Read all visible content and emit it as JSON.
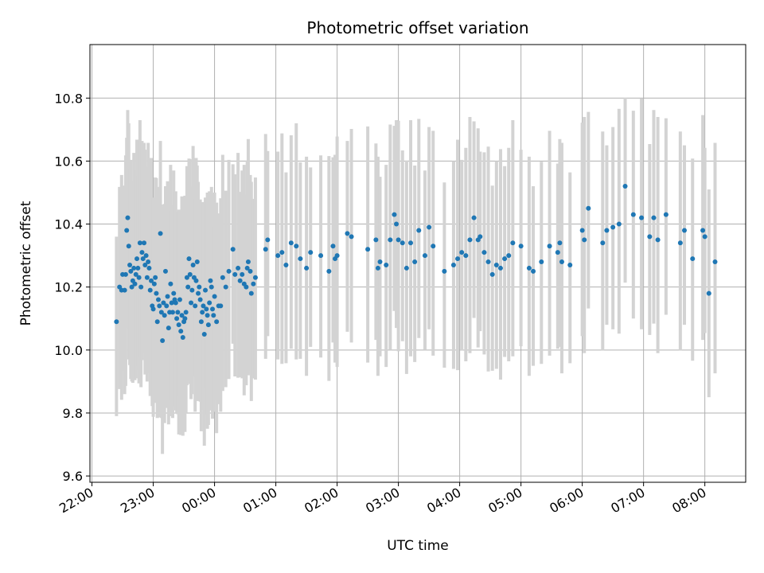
{
  "chart_data": {
    "type": "scatter",
    "title": "Photometric offset variation",
    "xlabel": "UTC time",
    "ylabel": "Photometric offset",
    "xlim": [
      "21:58",
      "08:40"
    ],
    "ylim": [
      9.58,
      10.97
    ],
    "grid": true,
    "colors": {
      "points": "#1f77b4",
      "error_bars": "#d3d3d3",
      "grid": "#b0b0b0"
    },
    "x_ticks": [
      "22:00",
      "23:00",
      "00:00",
      "01:00",
      "02:00",
      "03:00",
      "04:00",
      "05:00",
      "06:00",
      "07:00",
      "08:00"
    ],
    "y_ticks": [
      "9.6",
      "9.8",
      "10.0",
      "10.2",
      "10.4",
      "10.6",
      "10.8"
    ],
    "series": [
      {
        "error_bar_halfwidth_approx": 0.33,
        "points": [
          [
            "22:24",
            10.09
          ],
          [
            "22:27",
            10.2
          ],
          [
            "22:29",
            10.19
          ],
          [
            "22:30",
            10.24
          ],
          [
            "22:32",
            10.19
          ],
          [
            "22:33",
            10.24
          ],
          [
            "22:34",
            10.38
          ],
          [
            "22:35",
            10.42
          ],
          [
            "22:36",
            10.33
          ],
          [
            "22:37",
            10.27
          ],
          [
            "22:38",
            10.25
          ],
          [
            "22:39",
            10.2
          ],
          [
            "22:40",
            10.22
          ],
          [
            "22:41",
            10.26
          ],
          [
            "22:42",
            10.21
          ],
          [
            "22:43",
            10.24
          ],
          [
            "22:44",
            10.29
          ],
          [
            "22:45",
            10.26
          ],
          [
            "22:46",
            10.23
          ],
          [
            "22:47",
            10.34
          ],
          [
            "22:48",
            10.2
          ],
          [
            "22:49",
            10.31
          ],
          [
            "22:50",
            10.29
          ],
          [
            "22:51",
            10.34
          ],
          [
            "22:52",
            10.27
          ],
          [
            "22:53",
            10.3
          ],
          [
            "22:54",
            10.23
          ],
          [
            "22:55",
            10.28
          ],
          [
            "22:56",
            10.26
          ],
          [
            "22:57",
            10.19
          ],
          [
            "22:58",
            10.22
          ],
          [
            "22:59",
            10.14
          ],
          [
            "23:00",
            10.13
          ],
          [
            "23:01",
            10.21
          ],
          [
            "23:02",
            10.23
          ],
          [
            "23:03",
            10.18
          ],
          [
            "23:04",
            10.09
          ],
          [
            "23:05",
            10.16
          ],
          [
            "23:06",
            10.14
          ],
          [
            "23:07",
            10.37
          ],
          [
            "23:08",
            10.12
          ],
          [
            "23:09",
            10.03
          ],
          [
            "23:10",
            10.15
          ],
          [
            "23:11",
            10.11
          ],
          [
            "23:12",
            10.25
          ],
          [
            "23:13",
            10.14
          ],
          [
            "23:14",
            10.17
          ],
          [
            "23:15",
            10.07
          ],
          [
            "23:16",
            10.12
          ],
          [
            "23:17",
            10.21
          ],
          [
            "23:18",
            10.15
          ],
          [
            "23:19",
            10.12
          ],
          [
            "23:20",
            10.18
          ],
          [
            "23:21",
            10.16
          ],
          [
            "23:22",
            10.15
          ],
          [
            "23:23",
            10.1
          ],
          [
            "23:24",
            10.12
          ],
          [
            "23:25",
            10.08
          ],
          [
            "23:26",
            10.16
          ],
          [
            "23:27",
            10.06
          ],
          [
            "23:28",
            10.11
          ],
          [
            "23:29",
            10.04
          ],
          [
            "23:30",
            10.09
          ],
          [
            "23:31",
            10.1
          ],
          [
            "23:32",
            10.12
          ],
          [
            "23:33",
            10.23
          ],
          [
            "23:34",
            10.2
          ],
          [
            "23:35",
            10.29
          ],
          [
            "23:36",
            10.24
          ],
          [
            "23:37",
            10.15
          ],
          [
            "23:38",
            10.19
          ],
          [
            "23:39",
            10.27
          ],
          [
            "23:40",
            10.23
          ],
          [
            "23:41",
            10.14
          ],
          [
            "23:42",
            10.22
          ],
          [
            "23:43",
            10.28
          ],
          [
            "23:44",
            10.18
          ],
          [
            "23:45",
            10.2
          ],
          [
            "23:46",
            10.16
          ],
          [
            "23:47",
            10.09
          ],
          [
            "23:48",
            10.12
          ],
          [
            "23:49",
            10.14
          ],
          [
            "23:50",
            10.05
          ],
          [
            "23:51",
            10.19
          ],
          [
            "23:52",
            10.13
          ],
          [
            "23:53",
            10.11
          ],
          [
            "23:54",
            10.08
          ],
          [
            "23:55",
            10.15
          ],
          [
            "23:56",
            10.22
          ],
          [
            "23:57",
            10.2
          ],
          [
            "23:58",
            10.13
          ],
          [
            "23:59",
            10.11
          ],
          [
            "00:00",
            10.17
          ],
          [
            "00:02",
            10.09
          ],
          [
            "00:04",
            10.14
          ],
          [
            "00:06",
            10.14
          ],
          [
            "00:08",
            10.23
          ],
          [
            "00:11",
            10.2
          ],
          [
            "00:14",
            10.25
          ],
          [
            "00:18",
            10.32
          ],
          [
            "00:20",
            10.24
          ],
          [
            "00:23",
            10.26
          ],
          [
            "00:25",
            10.22
          ],
          [
            "00:27",
            10.24
          ],
          [
            "00:29",
            10.21
          ],
          [
            "00:31",
            10.2
          ],
          [
            "00:32",
            10.26
          ],
          [
            "00:33",
            10.28
          ],
          [
            "00:35",
            10.25
          ],
          [
            "00:36",
            10.18
          ],
          [
            "00:38",
            10.21
          ],
          [
            "00:40",
            10.23
          ],
          [
            "00:50",
            10.32
          ],
          [
            "00:52",
            10.35
          ],
          [
            "01:02",
            10.3
          ],
          [
            "01:06",
            10.31
          ],
          [
            "01:10",
            10.27
          ],
          [
            "01:15",
            10.34
          ],
          [
            "01:20",
            10.33
          ],
          [
            "01:24",
            10.29
          ],
          [
            "01:30",
            10.26
          ],
          [
            "01:34",
            10.31
          ],
          [
            "01:44",
            10.3
          ],
          [
            "01:52",
            10.25
          ],
          [
            "01:56",
            10.33
          ],
          [
            "01:58",
            10.29
          ],
          [
            "02:00",
            10.3
          ],
          [
            "02:10",
            10.37
          ],
          [
            "02:14",
            10.36
          ],
          [
            "02:30",
            10.32
          ],
          [
            "02:38",
            10.35
          ],
          [
            "02:40",
            10.26
          ],
          [
            "02:42",
            10.28
          ],
          [
            "02:48",
            10.27
          ],
          [
            "02:52",
            10.35
          ],
          [
            "02:56",
            10.43
          ],
          [
            "02:58",
            10.4
          ],
          [
            "03:00",
            10.35
          ],
          [
            "03:04",
            10.34
          ],
          [
            "03:08",
            10.26
          ],
          [
            "03:12",
            10.34
          ],
          [
            "03:16",
            10.28
          ],
          [
            "03:20",
            10.38
          ],
          [
            "03:26",
            10.3
          ],
          [
            "03:30",
            10.39
          ],
          [
            "03:34",
            10.33
          ],
          [
            "03:45",
            10.25
          ],
          [
            "03:54",
            10.27
          ],
          [
            "03:58",
            10.29
          ],
          [
            "04:02",
            10.31
          ],
          [
            "04:06",
            10.3
          ],
          [
            "04:10",
            10.35
          ],
          [
            "04:14",
            10.42
          ],
          [
            "04:18",
            10.35
          ],
          [
            "04:20",
            10.36
          ],
          [
            "04:24",
            10.31
          ],
          [
            "04:28",
            10.28
          ],
          [
            "04:32",
            10.24
          ],
          [
            "04:36",
            10.27
          ],
          [
            "04:40",
            10.26
          ],
          [
            "04:44",
            10.29
          ],
          [
            "04:48",
            10.3
          ],
          [
            "04:52",
            10.34
          ],
          [
            "05:00",
            10.33
          ],
          [
            "05:08",
            10.26
          ],
          [
            "05:12",
            10.25
          ],
          [
            "05:20",
            10.28
          ],
          [
            "05:28",
            10.33
          ],
          [
            "05:36",
            10.31
          ],
          [
            "05:38",
            10.34
          ],
          [
            "05:40",
            10.28
          ],
          [
            "05:48",
            10.27
          ],
          [
            "06:00",
            10.38
          ],
          [
            "06:02",
            10.35
          ],
          [
            "06:06",
            10.45
          ],
          [
            "06:20",
            10.34
          ],
          [
            "06:24",
            10.38
          ],
          [
            "06:30",
            10.39
          ],
          [
            "06:36",
            10.4
          ],
          [
            "06:42",
            10.52
          ],
          [
            "06:50",
            10.43
          ],
          [
            "06:58",
            10.42
          ],
          [
            "07:06",
            10.36
          ],
          [
            "07:10",
            10.42
          ],
          [
            "07:14",
            10.35
          ],
          [
            "07:22",
            10.43
          ],
          [
            "07:36",
            10.34
          ],
          [
            "07:40",
            10.38
          ],
          [
            "07:48",
            10.29
          ],
          [
            "07:58",
            10.38
          ],
          [
            "08:00",
            10.36
          ],
          [
            "08:04",
            10.18
          ],
          [
            "08:10",
            10.28
          ]
        ]
      }
    ]
  }
}
